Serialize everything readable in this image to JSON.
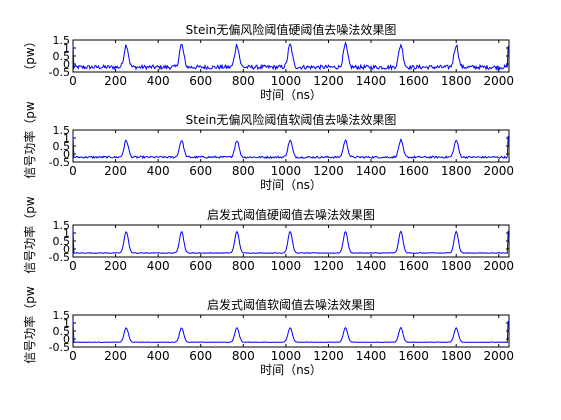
{
  "chart_data": [
    {
      "type": "line",
      "title": "Stein无偏风险阈值硬阈值去噪法效果图",
      "xlabel": "时间（ns）",
      "ylabel": "（pw）",
      "xlim": [
        0,
        2048
      ],
      "ylim": [
        -0.5,
        1.5
      ],
      "xticks": [
        0,
        200,
        400,
        600,
        800,
        1000,
        1200,
        1400,
        1600,
        1800,
        2000
      ],
      "yticks": [
        -0.5,
        0,
        0.5,
        1,
        1.5
      ],
      "yticklabels": [
        "-0.5",
        "0",
        "0.5",
        "1",
        "1.5"
      ],
      "grid": false,
      "color": "#0000ff",
      "pulse_centers": [
        250,
        510,
        770,
        1020,
        1280,
        1540,
        1800
      ],
      "pulse_peak": 1.2,
      "baseline": -0.2,
      "noise_level": 0.13
    },
    {
      "type": "line",
      "title": "Stein无偏风险阈值软阈值去噪法效果图",
      "xlabel": "时间（ns）",
      "ylabel": "信号功率（pw",
      "xlim": [
        0,
        2048
      ],
      "ylim": [
        -0.5,
        1.5
      ],
      "xticks": [
        0,
        200,
        400,
        600,
        800,
        1000,
        1200,
        1400,
        1600,
        1800,
        2000
      ],
      "yticks": [
        -0.5,
        0,
        0.5,
        1,
        1.5
      ],
      "yticklabels": [
        "-0.5",
        "0",
        "0.5",
        "1",
        "1.5"
      ],
      "grid": false,
      "color": "#0000ff",
      "pulse_centers": [
        250,
        510,
        770,
        1020,
        1280,
        1540,
        1800
      ],
      "pulse_peak": 0.85,
      "baseline": -0.2,
      "noise_level": 0.06
    },
    {
      "type": "line",
      "title": "启发式阈值硬阈值去噪法效果图",
      "xlabel": "",
      "ylabel": "信号功率（pw",
      "xlim": [
        0,
        2048
      ],
      "ylim": [
        -0.5,
        1.5
      ],
      "xticks": [
        0,
        200,
        400,
        600,
        800,
        1000,
        1200,
        1400,
        1600,
        1800,
        2000
      ],
      "yticks": [
        -0.5,
        0,
        0.5,
        1,
        1.5
      ],
      "yticklabels": [
        "-0.5",
        "0",
        "0.5",
        "1",
        "1.5"
      ],
      "grid": false,
      "color": "#0000ff",
      "pulse_centers": [
        250,
        510,
        770,
        1020,
        1280,
        1540,
        1800
      ],
      "pulse_peak": 1.1,
      "baseline": -0.25,
      "noise_level": 0.02
    },
    {
      "type": "line",
      "title": "启发式阈值软阈值去噪法效果图",
      "xlabel": "时间（ns）",
      "ylabel": "信号功率（pw",
      "xlim": [
        0,
        2048
      ],
      "ylim": [
        -0.5,
        1.5
      ],
      "xticks": [
        0,
        200,
        400,
        600,
        800,
        1000,
        1200,
        1400,
        1600,
        1800,
        2000
      ],
      "yticks": [
        -0.5,
        0,
        0.5,
        1,
        1.5
      ],
      "yticklabels": [
        "-0.5",
        "0",
        "0.5",
        "1",
        "1.5"
      ],
      "grid": false,
      "color": "#0000ff",
      "pulse_centers": [
        250,
        510,
        770,
        1020,
        1280,
        1540,
        1800
      ],
      "pulse_peak": 0.7,
      "baseline": -0.2,
      "noise_level": 0.015
    }
  ]
}
